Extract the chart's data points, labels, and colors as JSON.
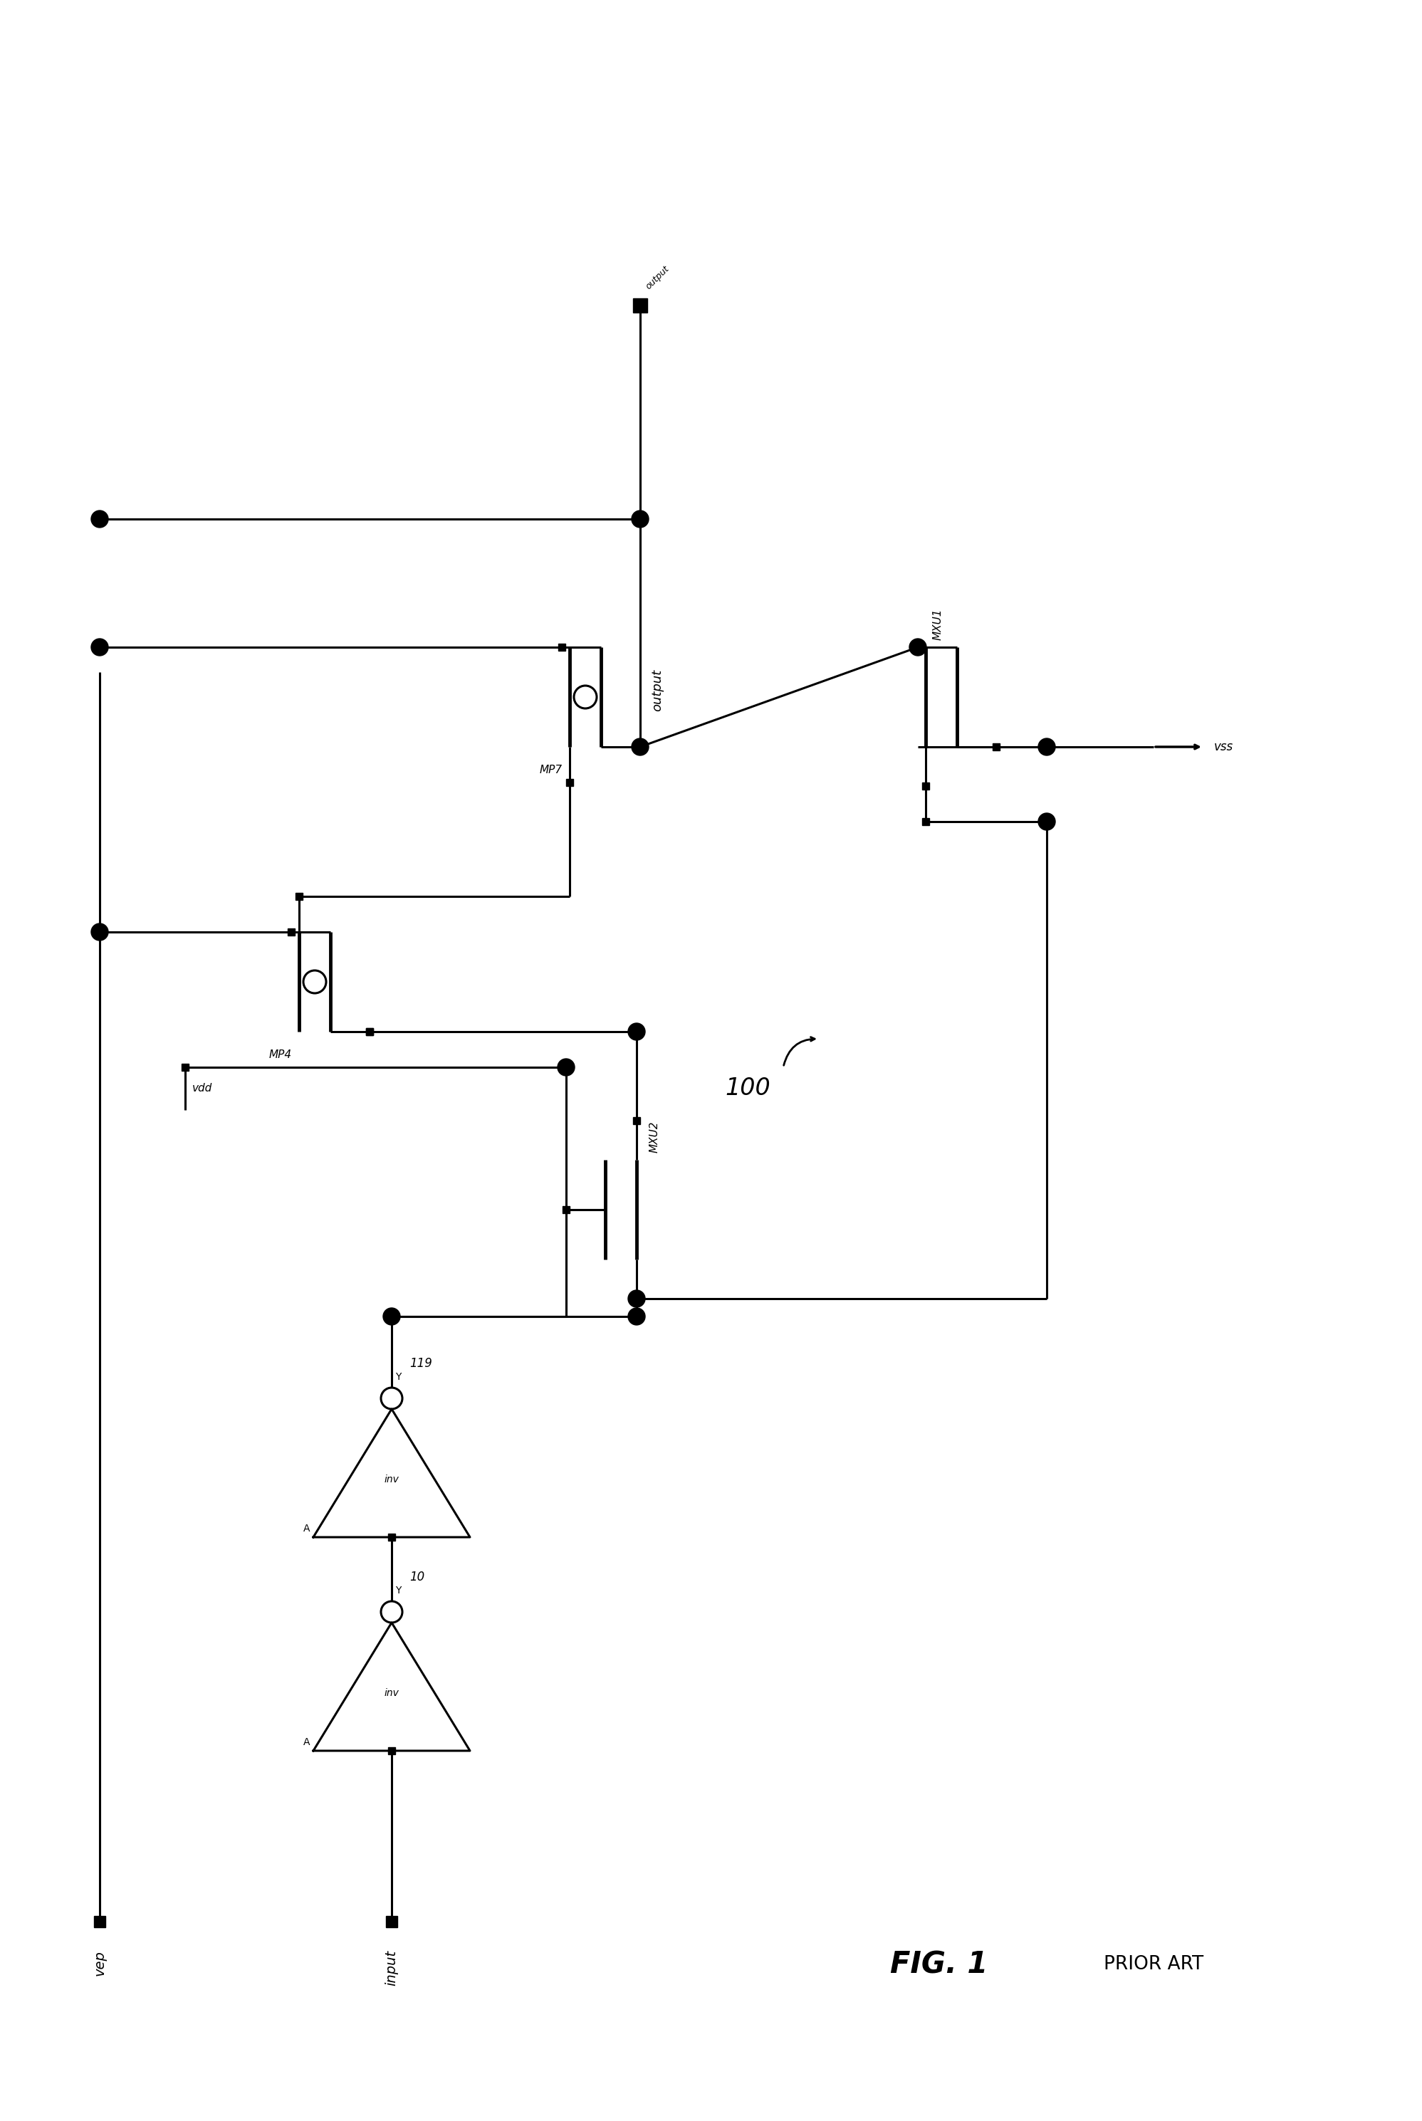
{
  "bg_color": "#ffffff",
  "lc": "black",
  "lw": 2.2,
  "lw_thick": 3.5,
  "sq_size": 7,
  "fig_label": "FIG. 1",
  "fig_sublabel": "PRIOR ART",
  "circuit_label": "100",
  "vep_label": "vep",
  "vss_label": "vss",
  "vdd_label": "vdd",
  "input_label": "input",
  "output_label": "output",
  "mp7_label": "MP7",
  "mp4_label": "MP4",
  "mxu1_label": "MXU1",
  "mxu2_label": "MXU2",
  "node119_label": "119",
  "node10_label": "10",
  "note_text": "100"
}
